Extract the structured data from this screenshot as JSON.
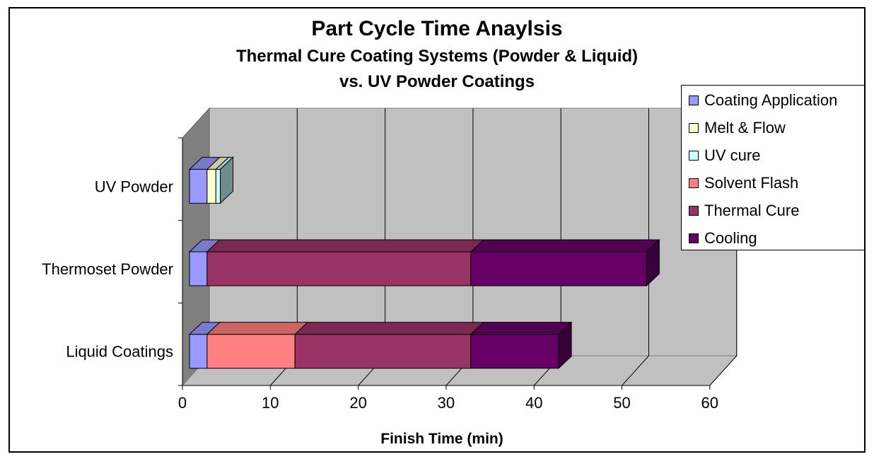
{
  "chart_data": {
    "type": "bar",
    "orientation": "horizontal",
    "stacked": true,
    "three_d": true,
    "title": "Part Cycle Time Anaylsis",
    "subtitle": [
      "Thermal Cure Coating Systems (Powder & Liquid)",
      "vs. UV Powder Coatings"
    ],
    "xlabel": "Finish Time (min)",
    "ylabel": "",
    "xlim": [
      0,
      60
    ],
    "x_ticks": [
      "0",
      "10",
      "20",
      "30",
      "40",
      "50",
      "60"
    ],
    "categories": [
      "UV Powder",
      "Thermoset Powder",
      "Liquid Coatings"
    ],
    "series": [
      {
        "name": "Coating Application",
        "color": "#9999FF",
        "values": [
          2,
          2,
          2
        ]
      },
      {
        "name": "Melt & Flow",
        "color": "#FFFFCC",
        "values": [
          1,
          0,
          0
        ]
      },
      {
        "name": "UV cure",
        "color": "#CCFFFF",
        "values": [
          0.5,
          0,
          0
        ]
      },
      {
        "name": "Solvent Flash",
        "color": "#FF8080",
        "values": [
          0,
          0,
          10
        ]
      },
      {
        "name": "Thermal Cure",
        "color": "#993366",
        "values": [
          0,
          30,
          20
        ]
      },
      {
        "name": "Cooling",
        "color": "#660066",
        "values": [
          0,
          20,
          10
        ]
      }
    ],
    "grid": "vertical",
    "legend_position": "right"
  }
}
